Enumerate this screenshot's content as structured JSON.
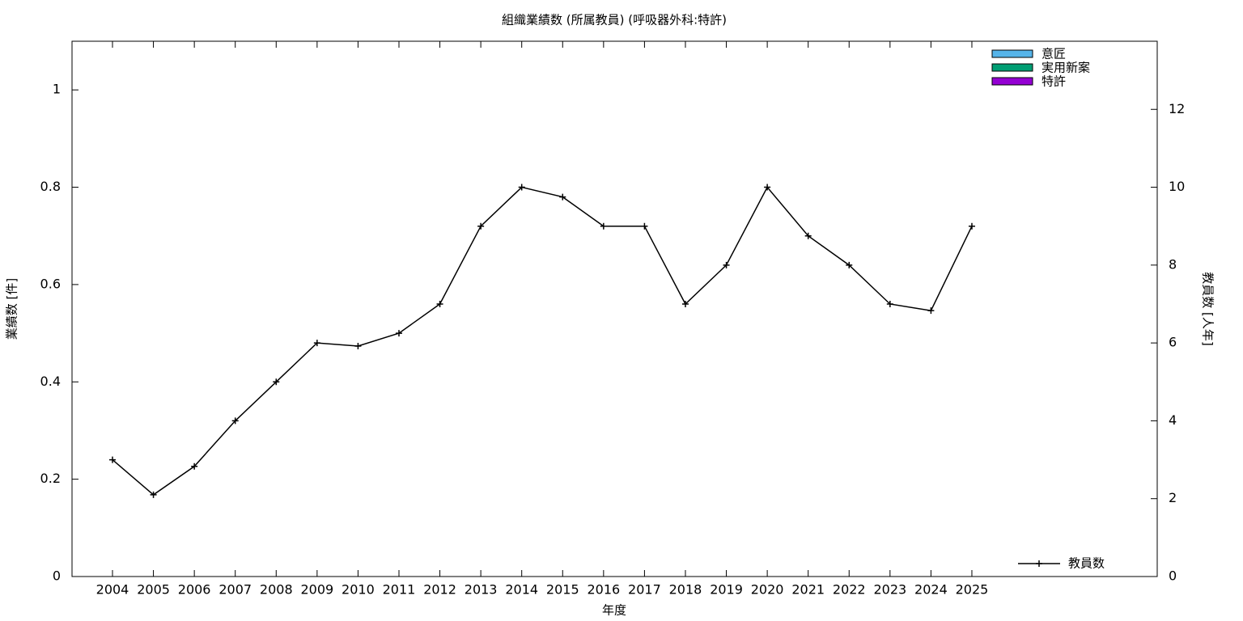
{
  "chart_data": {
    "type": "bar",
    "title": "組織業績数 (所属教員) (呼吸器外科:特許)",
    "xlabel": "年度",
    "ylabel": "業績数 [件]",
    "y2label": "教員数 [人年]",
    "categories": [
      "2004",
      "2005",
      "2006",
      "2007",
      "2008",
      "2009",
      "2010",
      "2011",
      "2012",
      "2013",
      "2014",
      "2015",
      "2016",
      "2017",
      "2018",
      "2019",
      "2020",
      "2021",
      "2022",
      "2023",
      "2024",
      "2025"
    ],
    "series": [
      {
        "name": "意匠",
        "type": "bar",
        "color": "#56b4e9",
        "values": [
          0,
          0,
          0,
          0,
          0,
          0,
          0,
          0,
          0,
          0,
          0,
          0,
          0,
          0,
          0,
          0,
          0,
          0,
          0,
          0,
          0,
          0
        ]
      },
      {
        "name": "実用新案",
        "type": "bar",
        "color": "#009e73",
        "values": [
          0,
          0,
          0,
          0,
          0,
          0,
          0,
          0,
          0,
          0,
          0,
          0,
          0,
          0,
          0,
          0,
          0,
          0,
          0,
          0,
          0,
          0
        ]
      },
      {
        "name": "特許",
        "type": "bar",
        "color": "#9400d3",
        "values": [
          0,
          0,
          0,
          0,
          0,
          0,
          0,
          0,
          0,
          0,
          0,
          0,
          0,
          0,
          0,
          0,
          0,
          0,
          0,
          0,
          0,
          0
        ]
      },
      {
        "name": "教員数",
        "type": "line",
        "axis": "y2",
        "color": "#000000",
        "values": [
          3,
          2.1,
          2.83,
          4,
          5,
          6,
          5.92,
          6.25,
          7,
          9,
          10,
          9.75,
          9,
          9,
          7,
          8,
          10,
          8.75,
          8,
          7,
          6.83,
          9
        ]
      }
    ],
    "ylim": [
      0,
      1.1
    ],
    "yticks": [
      0,
      0.2,
      0.4,
      0.6,
      0.8,
      1
    ],
    "y2lim": [
      0,
      13.75
    ],
    "y2ticks": [
      0,
      2,
      4,
      6,
      8,
      10,
      12
    ],
    "grid": false
  }
}
